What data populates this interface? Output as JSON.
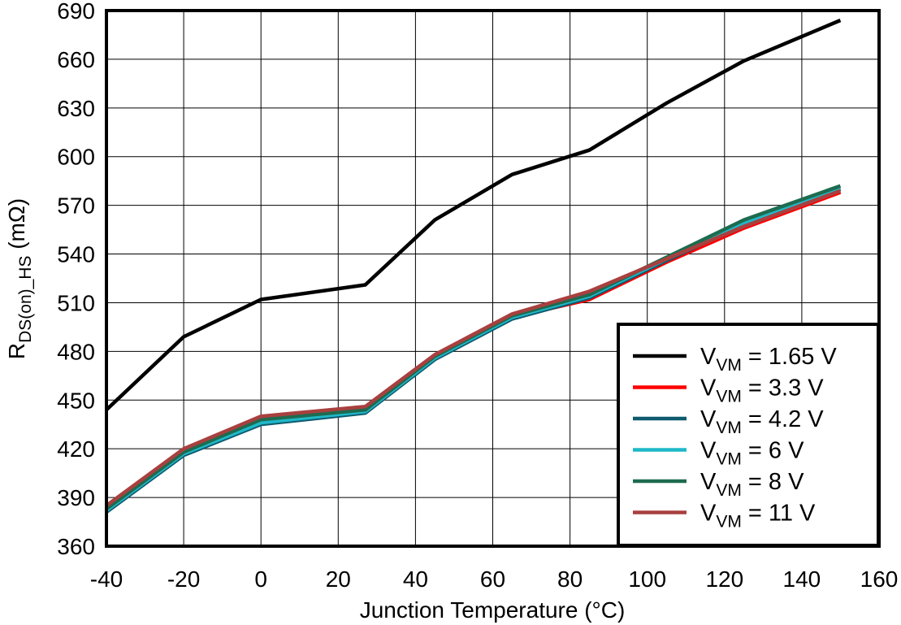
{
  "chart_data": {
    "type": "line",
    "xlabel": "Junction Temperature (°C)",
    "ylabel": {
      "main": "R",
      "sub": "DS(on)_HS",
      "unit": " (mΩ)"
    },
    "xlim": [
      -40,
      160
    ],
    "ylim": [
      360,
      690
    ],
    "xticks": [
      -40,
      -20,
      0,
      20,
      40,
      60,
      80,
      100,
      120,
      140,
      160
    ],
    "yticks": [
      360,
      390,
      420,
      450,
      480,
      510,
      540,
      570,
      600,
      630,
      660,
      690
    ],
    "grid": true,
    "legend_position": "bottom-right",
    "x": [
      -40,
      -20,
      0,
      27,
      45,
      65,
      85,
      105,
      125,
      150
    ],
    "series": [
      {
        "name": "V_VM = 1.65 V",
        "label_main": "V",
        "label_sub": "VM",
        "label_rest": " = 1.65 V",
        "color": "#000000",
        "values": [
          444,
          489,
          512,
          521,
          561,
          589,
          604,
          633,
          659,
          684
        ]
      },
      {
        "name": "V_VM = 3.3 V",
        "label_main": "V",
        "label_sub": "VM",
        "label_rest": " = 3.3 V",
        "color": "#ff0000",
        "values": [
          383,
          417,
          437,
          444,
          477,
          501,
          512,
          535,
          556,
          578
        ]
      },
      {
        "name": "V_VM = 4.2 V",
        "label_main": "V",
        "label_sub": "VM",
        "label_rest": " = 4.2 V",
        "color": "#0e5a6e",
        "values": [
          381,
          416,
          435,
          442,
          475,
          500,
          513,
          536,
          558,
          580
        ]
      },
      {
        "name": "V_VM = 6 V",
        "label_main": "V",
        "label_sub": "VM",
        "label_rest": " = 6 V",
        "color": "#1fb8c8",
        "values": [
          382,
          417,
          436,
          443,
          476,
          501,
          514,
          537,
          559,
          581
        ]
      },
      {
        "name": "V_VM = 8 V",
        "label_main": "V",
        "label_sub": "VM",
        "label_rest": " = 8 V",
        "color": "#1e6b4f",
        "values": [
          383,
          418,
          438,
          444,
          477,
          502,
          515,
          538,
          561,
          582
        ]
      },
      {
        "name": "V_VM = 11 V",
        "label_main": "V",
        "label_sub": "VM",
        "label_rest": " = 11 V",
        "color": "#a8403f",
        "values": [
          385,
          420,
          440,
          446,
          478,
          503,
          517,
          537,
          557,
          579
        ]
      }
    ]
  }
}
